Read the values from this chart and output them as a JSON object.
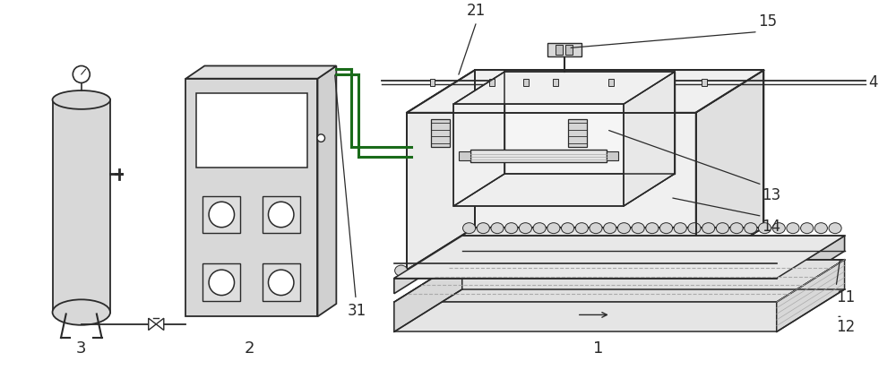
{
  "bg_color": "#ffffff",
  "line_color": "#2a2a2a",
  "green_line": "#1a6b1a",
  "light_gray": "#d8d8d8",
  "mid_gray": "#aaaaaa",
  "dark_gray": "#888888",
  "figsize": [
    10.0,
    4.13
  ],
  "dpi": 100
}
